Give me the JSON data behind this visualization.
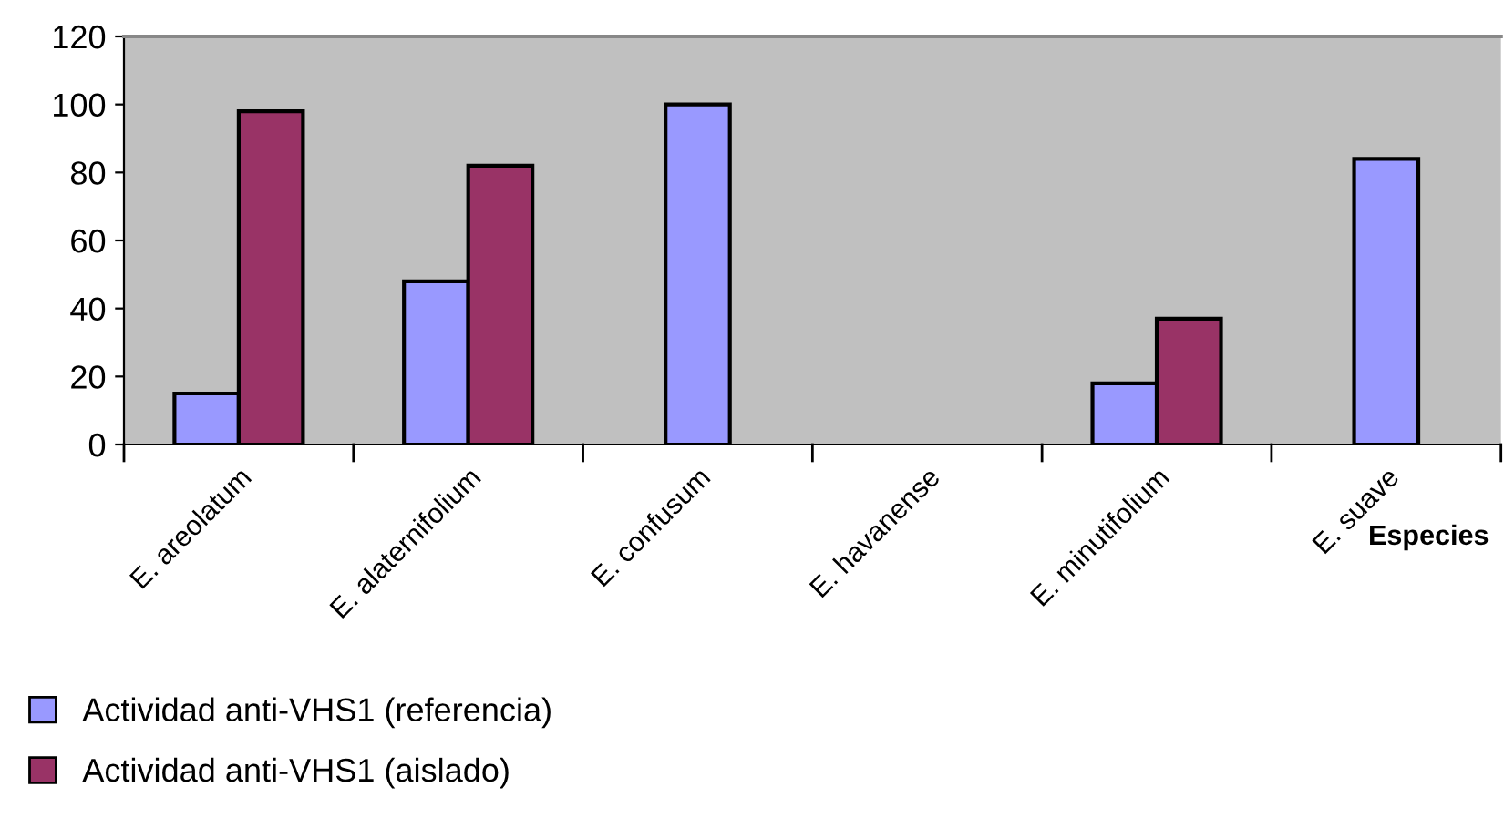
{
  "chart_data": {
    "type": "bar",
    "categories": [
      "E. areolatum",
      "E. alaternifolium",
      "E. confusum",
      "E. havanense",
      "E. minutifolium",
      "E. suave"
    ],
    "series": [
      {
        "name": "Actividad anti-VHS1 (referencia)",
        "color": "#9999ff",
        "values": [
          15,
          48,
          100,
          null,
          18,
          84
        ]
      },
      {
        "name": "Actividad anti-VHS1 (aislado)",
        "color": "#993366",
        "values": [
          98,
          82,
          null,
          null,
          37,
          null
        ]
      }
    ],
    "xlabel": "Especies",
    "ylim": [
      0,
      120
    ],
    "yticks": [
      0,
      20,
      40,
      60,
      80,
      100,
      120
    ],
    "grid": false,
    "legend": "bottom left"
  }
}
